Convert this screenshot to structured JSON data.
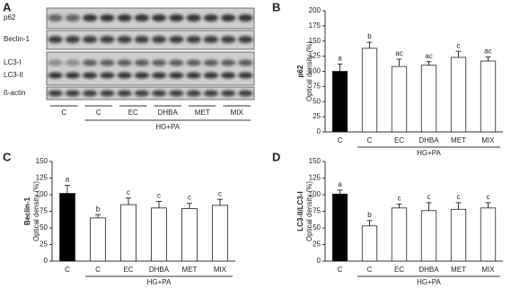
{
  "blot": {
    "panel": "A",
    "rows": [
      "p62",
      "Beclin-1",
      "LC3-I",
      "LC3-II",
      "ß-actin"
    ],
    "lanes": [
      "C",
      "C",
      "EC",
      "DHBA",
      "MET",
      "MIX"
    ],
    "group_label": "HG+PA"
  },
  "chart_data": [
    {
      "type": "bar",
      "panel": "B",
      "ylabel": [
        "p62",
        "Optical density (%)"
      ],
      "categories": [
        "C",
        "C",
        "EC",
        "DHBA",
        "MET",
        "MIX"
      ],
      "values": [
        100,
        138,
        108,
        110,
        123,
        117
      ],
      "errors": [
        12,
        10,
        12,
        6,
        10,
        7
      ],
      "annotations": [
        "a",
        "b",
        "ac",
        "ac",
        "c",
        "ac"
      ],
      "colors": [
        "#000000",
        "#ffffff",
        "#ffffff",
        "#ffffff",
        "#ffffff",
        "#ffffff"
      ],
      "group_label": "HG+PA",
      "ylim": [
        0,
        200
      ],
      "yticks": [
        0,
        25,
        50,
        75,
        100,
        125,
        150,
        175,
        200
      ]
    },
    {
      "type": "bar",
      "panel": "C",
      "ylabel": [
        "Beclin-1",
        "Optical density (%)"
      ],
      "categories": [
        "C",
        "C",
        "EC",
        "DHBA",
        "MET",
        "MIX"
      ],
      "values": [
        102,
        65,
        85,
        80,
        79,
        84
      ],
      "errors": [
        12,
        5,
        10,
        10,
        8,
        9
      ],
      "annotations": [
        "a",
        "b",
        "c",
        "c",
        "c",
        "c"
      ],
      "colors": [
        "#000000",
        "#ffffff",
        "#ffffff",
        "#ffffff",
        "#ffffff",
        "#ffffff"
      ],
      "group_label": "HG+PA",
      "ylim": [
        0,
        150
      ],
      "yticks": [
        0,
        25,
        50,
        75,
        100,
        125,
        150
      ]
    },
    {
      "type": "bar",
      "panel": "D",
      "ylabel": [
        "LC3-II/LC3-I",
        "Optical density (%)"
      ],
      "categories": [
        "C",
        "C",
        "EC",
        "DHBA",
        "MET",
        "MIX"
      ],
      "values": [
        101,
        53,
        80,
        76,
        78,
        80
      ],
      "errors": [
        6,
        8,
        6,
        12,
        10,
        8
      ],
      "annotations": [
        "a",
        "b",
        "c",
        "c",
        "c",
        "c"
      ],
      "colors": [
        "#000000",
        "#ffffff",
        "#ffffff",
        "#ffffff",
        "#ffffff",
        "#ffffff"
      ],
      "group_label": "HG+PA",
      "ylim": [
        0,
        150
      ],
      "yticks": [
        0,
        25,
        50,
        75,
        100,
        125,
        150
      ]
    }
  ]
}
